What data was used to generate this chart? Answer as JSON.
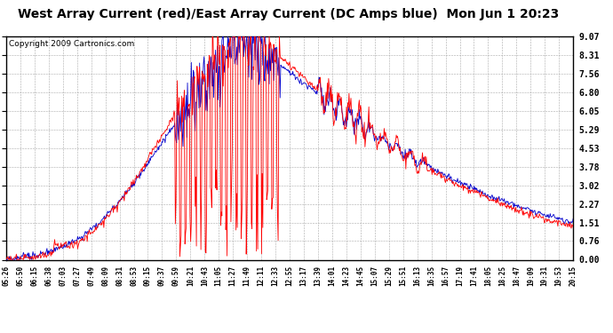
{
  "title": "West Array Current (red)/East Array Current (DC Amps blue)  Mon Jun 1 20:23",
  "copyright": "Copyright 2009 Cartronics.com",
  "yticks": [
    0.0,
    0.76,
    1.51,
    2.27,
    3.02,
    3.78,
    4.53,
    5.29,
    6.05,
    6.8,
    7.56,
    8.31,
    9.07
  ],
  "ylim": [
    0.0,
    9.07
  ],
  "xtick_labels": [
    "05:26",
    "05:50",
    "06:15",
    "06:38",
    "07:03",
    "07:27",
    "07:49",
    "08:09",
    "08:31",
    "08:53",
    "09:15",
    "09:37",
    "09:59",
    "10:21",
    "10:43",
    "11:05",
    "11:27",
    "11:49",
    "12:11",
    "12:33",
    "12:55",
    "13:17",
    "13:39",
    "14:01",
    "14:23",
    "14:45",
    "15:07",
    "15:29",
    "15:51",
    "16:13",
    "16:35",
    "16:57",
    "17:19",
    "17:41",
    "18:05",
    "18:25",
    "18:47",
    "19:09",
    "19:31",
    "19:53",
    "20:15"
  ],
  "background_color": "#ffffff",
  "grid_color": "#aaaaaa",
  "line_color_west": "#ff0000",
  "line_color_east": "#0000cc",
  "title_fontsize": 10,
  "copyright_fontsize": 6.5
}
